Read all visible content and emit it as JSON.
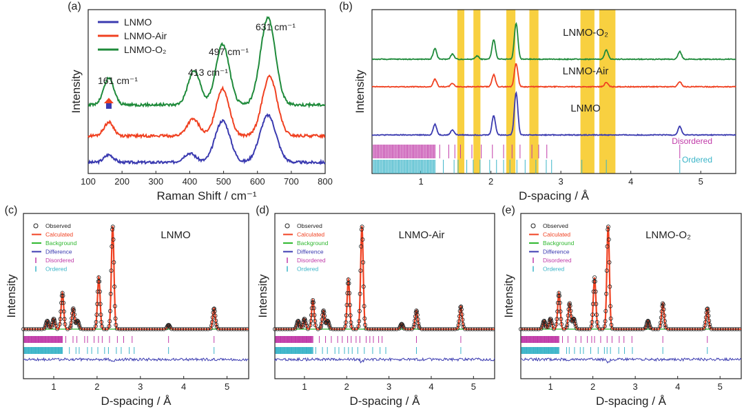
{
  "colors": {
    "blue": "#3a3ab0",
    "red": "#f04020",
    "green": "#1e8a3a",
    "magenta": "#c03aa8",
    "cyan": "#3ab4c8",
    "band": "#f8d040",
    "bg_green": "#2fb82f"
  },
  "chart_data": [
    {
      "panel": "(a)",
      "type": "line",
      "xlabel": "Raman Shift / cm⁻¹",
      "ylabel": "Intensity",
      "xlim": [
        100,
        800
      ],
      "xticks": [
        100,
        200,
        300,
        400,
        500,
        600,
        700,
        800
      ],
      "legend": [
        "LNMO",
        "LNMO-Air",
        "LNMO-O₂"
      ],
      "legend_position": "top-left",
      "annotations": [
        {
          "text": "161 cm⁻¹",
          "x": 161
        },
        {
          "text": "413 cm⁻¹",
          "x": 413
        },
        {
          "text": "497 cm⁻¹",
          "x": 497
        },
        {
          "text": "631 cm⁻¹",
          "x": 631
        }
      ],
      "series": [
        {
          "name": "LNMO",
          "color": "blue",
          "offset": 0,
          "peaks": [
            [
              161,
              0.1,
              14
            ],
            [
              400,
              0.12,
              18
            ],
            [
              497,
              0.55,
              22
            ],
            [
              631,
              0.62,
              24
            ]
          ],
          "base": 0.02
        },
        {
          "name": "LNMO-Air",
          "color": "red",
          "offset": 0.33,
          "peaks": [
            [
              161,
              0.18,
              14
            ],
            [
              410,
              0.22,
              18
            ],
            [
              497,
              0.62,
              20
            ],
            [
              636,
              0.78,
              22
            ]
          ],
          "base": 0.04
        },
        {
          "name": "LNMO-O₂",
          "color": "green",
          "offset": 0.72,
          "peaks": [
            [
              161,
              0.35,
              15
            ],
            [
              413,
              0.45,
              18
            ],
            [
              497,
              0.8,
              20
            ],
            [
              631,
              1.15,
              22
            ]
          ],
          "base": 0.06
        }
      ]
    },
    {
      "panel": "(b)",
      "type": "line",
      "xlabel": "D-spacing / Å",
      "ylabel": "Intensity",
      "xlim": [
        0.3,
        5.5
      ],
      "xticks": [
        1,
        2,
        3,
        4,
        5
      ],
      "highlight_bands": [
        [
          1.52,
          1.62
        ],
        [
          1.75,
          1.85
        ],
        [
          2.22,
          2.35
        ],
        [
          2.55,
          2.68
        ],
        [
          3.28,
          3.48
        ],
        [
          3.55,
          3.78
        ]
      ],
      "series": [
        {
          "name": "LNMO",
          "label": "LNMO",
          "color": "blue",
          "peaks": [
            [
              1.2,
              0.25
            ],
            [
              1.45,
              0.12
            ],
            [
              2.04,
              0.45
            ],
            [
              2.36,
              1.0
            ],
            [
              4.7,
              0.2
            ]
          ]
        },
        {
          "name": "LNMO-Air",
          "label": "LNMO-Air",
          "color": "red",
          "peaks": [
            [
              1.2,
              0.18
            ],
            [
              1.45,
              0.08
            ],
            [
              2.04,
              0.28
            ],
            [
              2.36,
              0.55
            ],
            [
              3.65,
              0.1
            ],
            [
              4.7,
              0.12
            ]
          ]
        },
        {
          "name": "LNMO-O₂",
          "label": "LNMO-O₂",
          "color": "green",
          "peaks": [
            [
              1.2,
              0.25
            ],
            [
              1.45,
              0.12
            ],
            [
              1.8,
              0.08
            ],
            [
              2.04,
              0.45
            ],
            [
              2.36,
              0.85
            ],
            [
              3.65,
              0.22
            ],
            [
              4.7,
              0.18
            ]
          ]
        }
      ],
      "tick_rows": [
        {
          "name": "Disordered",
          "color": "magenta"
        },
        {
          "name": "Ordered",
          "color": "cyan"
        }
      ]
    },
    {
      "panel": "(c)",
      "type": "line",
      "title": "LNMO",
      "xlabel": "D-spacing / Å",
      "ylabel": "Intensity",
      "xlim": [
        0.3,
        5.5
      ],
      "xticks": [
        1,
        2,
        3,
        4,
        5
      ],
      "legend": [
        "Observed",
        "Calculated",
        "Background",
        "Difference",
        "Disordered",
        "Ordered"
      ],
      "peaks": [
        [
          0.85,
          0.08
        ],
        [
          1.0,
          0.1
        ],
        [
          1.2,
          0.35
        ],
        [
          1.45,
          0.2
        ],
        [
          1.55,
          0.08
        ],
        [
          2.04,
          0.5
        ],
        [
          2.36,
          1.0
        ],
        [
          3.65,
          0.04
        ],
        [
          4.7,
          0.2
        ]
      ]
    },
    {
      "panel": "(d)",
      "type": "line",
      "title": "LNMO-Air",
      "xlabel": "D-spacing / Å",
      "ylabel": "Intensity",
      "xlim": [
        0.3,
        5.5
      ],
      "xticks": [
        1,
        2,
        3,
        4,
        5
      ],
      "legend": [
        "Observed",
        "Calculated",
        "Background",
        "Difference",
        "Disordered",
        "Ordered"
      ],
      "peaks": [
        [
          0.85,
          0.08
        ],
        [
          1.0,
          0.1
        ],
        [
          1.2,
          0.28
        ],
        [
          1.45,
          0.18
        ],
        [
          1.55,
          0.08
        ],
        [
          2.04,
          0.48
        ],
        [
          2.36,
          1.0
        ],
        [
          3.3,
          0.05
        ],
        [
          3.65,
          0.18
        ],
        [
          4.7,
          0.22
        ]
      ]
    },
    {
      "panel": "(e)",
      "type": "line",
      "title": "LNMO-O₂",
      "xlabel": "D-spacing / Å",
      "ylabel": "Intensity",
      "xlim": [
        0.3,
        5.5
      ],
      "xticks": [
        1,
        2,
        3,
        4,
        5
      ],
      "legend": [
        "Observed",
        "Calculated",
        "Background",
        "Difference",
        "Disordered",
        "Ordered"
      ],
      "peaks": [
        [
          0.85,
          0.08
        ],
        [
          1.0,
          0.1
        ],
        [
          1.2,
          0.35
        ],
        [
          1.45,
          0.25
        ],
        [
          1.55,
          0.1
        ],
        [
          2.04,
          0.5
        ],
        [
          2.36,
          1.0
        ],
        [
          3.3,
          0.08
        ],
        [
          3.65,
          0.25
        ],
        [
          4.7,
          0.2
        ]
      ]
    }
  ]
}
